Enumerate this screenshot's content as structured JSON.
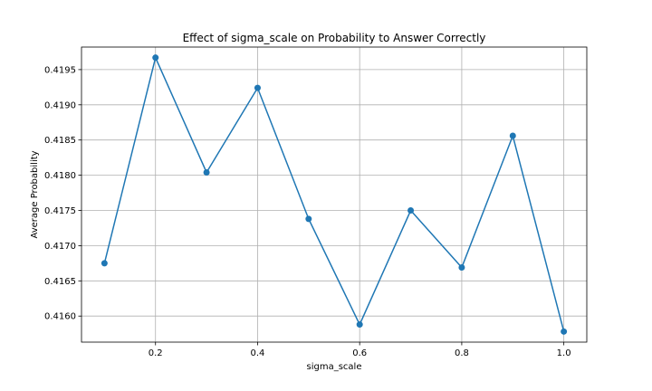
{
  "chart_data": {
    "type": "line",
    "title": "Effect of sigma_scale on Probability to Answer Correctly",
    "xlabel": "sigma_scale",
    "ylabel": "Average Probability",
    "x": [
      0.1,
      0.2,
      0.3,
      0.4,
      0.5,
      0.6,
      0.7,
      0.8,
      0.9,
      1.0
    ],
    "series": [
      {
        "values": [
          0.41675,
          0.41967,
          0.41804,
          0.41924,
          0.41738,
          0.41588,
          0.4175,
          0.41669,
          0.41856,
          0.41578
        ]
      }
    ],
    "xlim": [
      0.055,
      1.045
    ],
    "ylim": [
      0.41563,
      0.41982
    ],
    "x_ticks": [
      0.2,
      0.4,
      0.6,
      0.8,
      1.0
    ],
    "x_tick_labels": [
      "0.2",
      "0.4",
      "0.6",
      "0.8",
      "1.0"
    ],
    "y_ticks": [
      0.416,
      0.4165,
      0.417,
      0.4175,
      0.418,
      0.4185,
      0.419,
      0.4195
    ],
    "y_tick_labels": [
      "0.4160",
      "0.4165",
      "0.4170",
      "0.4175",
      "0.4180",
      "0.4185",
      "0.4190",
      "0.4195"
    ],
    "grid": true,
    "marker": "circle",
    "line_color": "#1f77b4"
  }
}
